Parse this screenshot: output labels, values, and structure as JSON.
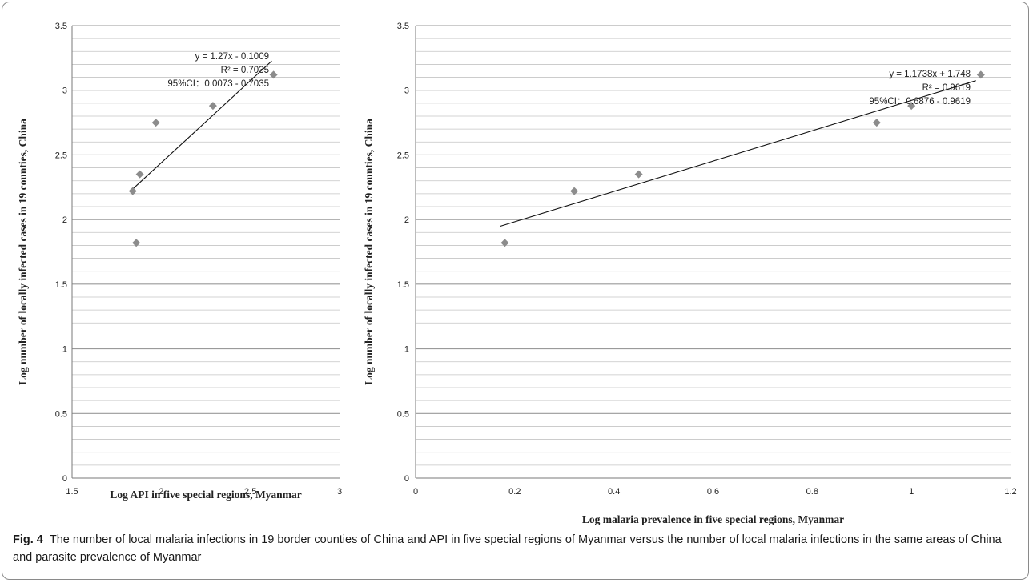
{
  "caption": {
    "label": "Fig. 4",
    "text": "The number of local malaria infections in 19 border counties of China and API in five special regions of Myanmar versus the number of local malaria infections in the same areas of China and parasite prevalence of Myanmar"
  },
  "chart_data": [
    {
      "type": "scatter",
      "title": "",
      "xlabel": "Log API in five special regions, Myanmar",
      "ylabel": "Log number of locally infected cases in 19 counties, China",
      "xlim": [
        1.5,
        3
      ],
      "ylim": [
        0,
        3.5
      ],
      "xticks": [
        1.5,
        2,
        2.5,
        3
      ],
      "xtick_labels": [
        "1.5",
        "2",
        "2.5",
        "3"
      ],
      "yticks": [
        0,
        0.5,
        1,
        1.5,
        2,
        2.5,
        3,
        3.5
      ],
      "ytick_labels": [
        "0",
        "0.5",
        "1",
        "1.5",
        "2",
        "2.5",
        "3",
        "3.5"
      ],
      "grid": true,
      "marker_color": "#8c8c8c",
      "points": [
        {
          "x": 1.84,
          "y": 2.22
        },
        {
          "x": 1.86,
          "y": 1.82
        },
        {
          "x": 1.88,
          "y": 2.35
        },
        {
          "x": 1.97,
          "y": 2.75
        },
        {
          "x": 2.29,
          "y": 2.88
        },
        {
          "x": 2.63,
          "y": 3.12
        }
      ],
      "trendline": {
        "slope": 1.27,
        "intercept": -0.1009,
        "x_range": [
          1.84,
          2.62
        ]
      },
      "annotations": [
        "y = 1.27x - 0.1009",
        "R² = 0.7035",
        "95%CI：0.0073 - 0.7035"
      ]
    },
    {
      "type": "scatter",
      "title": "",
      "xlabel": "Log malaria prevalence in five special regions, Myanmar",
      "ylabel": "Log number of locally infected cases in 19 counties, China",
      "xlim": [
        0,
        1.2
      ],
      "ylim": [
        0,
        3.5
      ],
      "xticks": [
        0,
        0.2,
        0.4,
        0.6,
        0.8,
        1,
        1.2
      ],
      "xtick_labels": [
        "0",
        "0.2",
        "0.4",
        "0.6",
        "0.8",
        "1",
        "1.2"
      ],
      "yticks": [
        0,
        0.5,
        1,
        1.5,
        2,
        2.5,
        3,
        3.5
      ],
      "ytick_labels": [
        "0",
        "0.5",
        "1",
        "1.5",
        "2",
        "2.5",
        "3",
        "3.5"
      ],
      "grid": true,
      "marker_color": "#8c8c8c",
      "points": [
        {
          "x": 0.18,
          "y": 1.82
        },
        {
          "x": 0.32,
          "y": 2.22
        },
        {
          "x": 0.45,
          "y": 2.35
        },
        {
          "x": 0.93,
          "y": 2.75
        },
        {
          "x": 1.0,
          "y": 2.88
        },
        {
          "x": 1.14,
          "y": 3.12
        }
      ],
      "trendline": {
        "slope": 1.1738,
        "intercept": 1.748,
        "x_range": [
          0.17,
          1.13
        ]
      },
      "annotations": [
        "y = 1.1738x + 1.748",
        "R² = 0.9619",
        "95%CI：0.6876 - 0.9619"
      ]
    }
  ]
}
